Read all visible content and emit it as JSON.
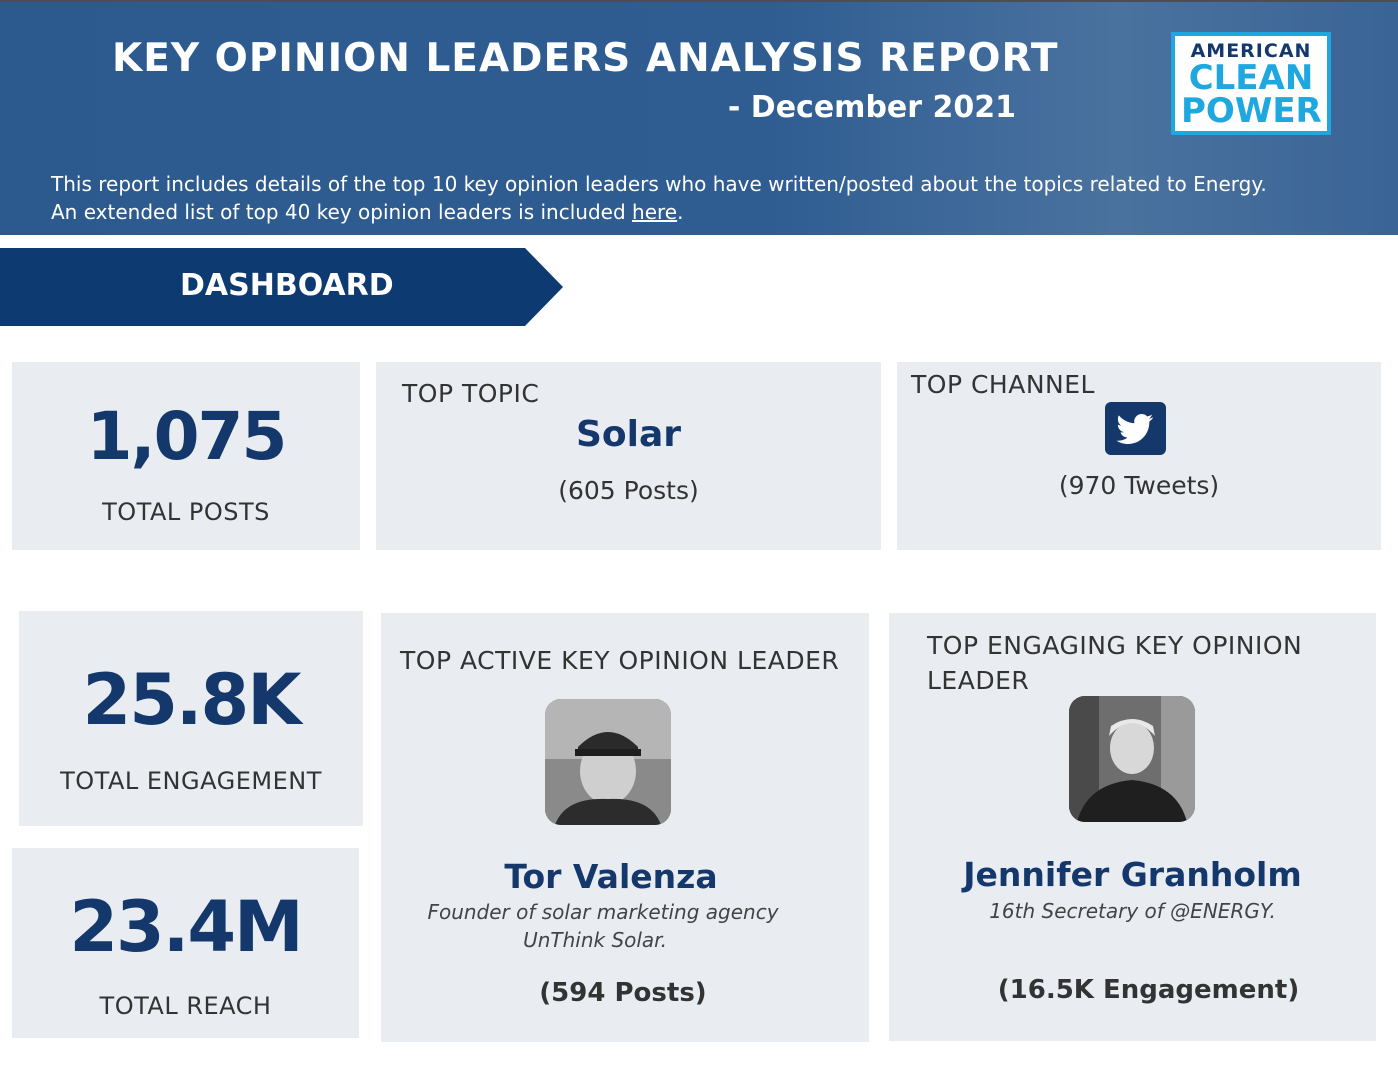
{
  "header": {
    "title": "KEY OPINION LEADERS ANALYSIS REPORT",
    "subtitle": "- December 2021",
    "description_line1": "This report includes details of the top 10 key opinion leaders who have written/posted about the topics related to Energy.",
    "description_line2_prefix": "An extended list of top 40 key opinion leaders is included ",
    "description_link": "here",
    "description_line2_suffix": "."
  },
  "logo": {
    "line1": "AMERICAN",
    "line2": "CLEAN",
    "line3": "POWER"
  },
  "dashboard": {
    "label": "DASHBOARD"
  },
  "total_posts": {
    "value": "1,075",
    "label": "TOTAL POSTS"
  },
  "top_topic": {
    "heading": "TOP TOPIC",
    "name": "Solar",
    "count": "(605 Posts)"
  },
  "top_channel": {
    "heading": "TOP CHANNEL",
    "icon": "twitter-icon",
    "count": "(970 Tweets)"
  },
  "total_engagement": {
    "value": "25.8K",
    "label": "TOTAL ENGAGEMENT"
  },
  "total_reach": {
    "value": "23.4M",
    "label": "TOTAL REACH"
  },
  "top_active": {
    "heading": "TOP ACTIVE KEY OPINION LEADER",
    "name": "Tor Valenza",
    "bio_line1": "Founder of solar marketing agency",
    "bio_line2": "UnThink Solar.",
    "count": "(594 Posts)"
  },
  "top_engaging": {
    "heading_line1": "TOP ENGAGING KEY OPINION",
    "heading_line2": "LEADER",
    "name": "Jennifer Granholm",
    "bio": "16th Secretary of @ENERGY.",
    "count": "(16.5K Engagement)"
  },
  "colors": {
    "header_bg": "#2f5d92",
    "banner": "#0d3a70",
    "card_bg": "#e9edf2",
    "accent_dark": "#14386b",
    "logo_blue": "#1fa8e0"
  }
}
